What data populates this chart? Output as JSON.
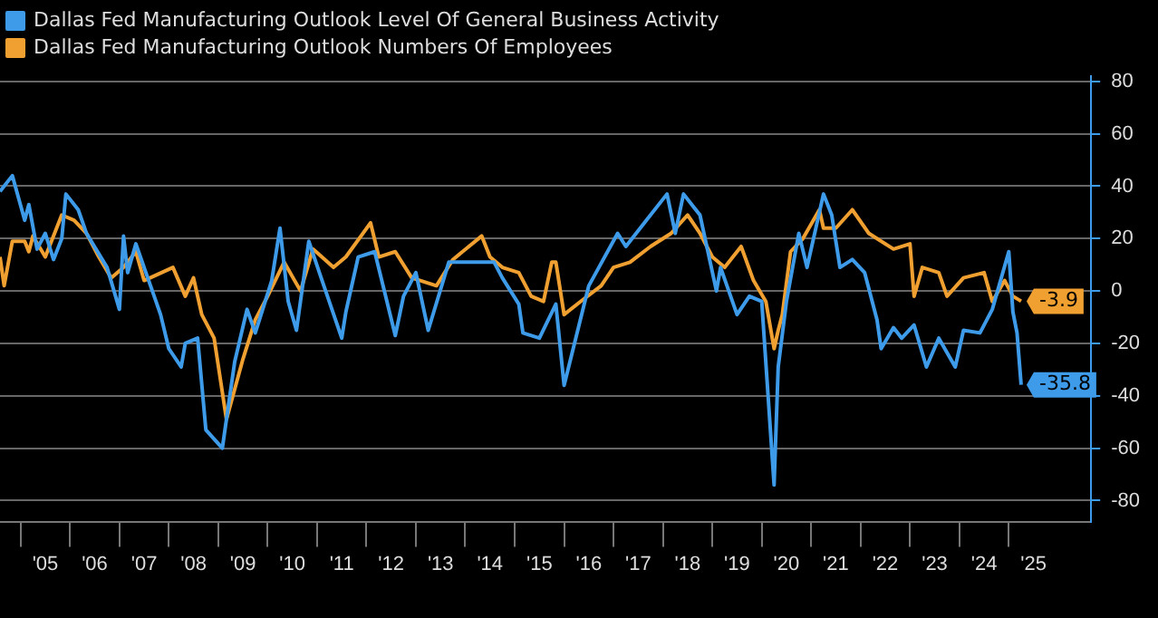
{
  "chart_data": {
    "type": "line",
    "series": [
      {
        "name": "Dallas Fed Manufacturing Outlook Level Of General Business Activity",
        "color": "#3d9be9",
        "x": [
          "2004-08",
          "2004-11",
          "2005-02",
          "2005-03",
          "2005-05",
          "2005-07",
          "2005-09",
          "2005-11",
          "2005-12",
          "2006-03",
          "2006-05",
          "2006-10",
          "2007-01",
          "2007-02",
          "2007-03",
          "2007-05",
          "2007-09",
          "2007-11",
          "2008-01",
          "2008-04",
          "2008-05",
          "2008-08",
          "2008-10",
          "2009-02",
          "2009-03",
          "2009-05",
          "2009-08",
          "2009-10",
          "2010-02",
          "2010-04",
          "2010-06",
          "2010-08",
          "2010-11",
          "2011-02",
          "2011-07",
          "2011-08",
          "2011-11",
          "2012-03",
          "2012-08",
          "2012-10",
          "2013-01",
          "2013-04",
          "2013-09",
          "2014-04",
          "2014-08",
          "2014-10",
          "2015-02",
          "2015-03",
          "2015-07",
          "2015-11",
          "2016-01",
          "2016-07",
          "2017-02",
          "2017-04",
          "2017-09",
          "2018-02",
          "2018-04",
          "2018-06",
          "2018-10",
          "2019-02",
          "2019-03",
          "2019-07",
          "2019-10",
          "2020-01",
          "2020-04",
          "2020-05",
          "2020-07",
          "2020-10",
          "2020-12",
          "2021-04",
          "2021-06",
          "2021-08",
          "2021-11",
          "2022-02",
          "2022-05",
          "2022-06",
          "2022-09",
          "2022-11",
          "2023-02",
          "2023-05",
          "2023-08",
          "2023-12",
          "2024-02",
          "2024-06",
          "2024-09",
          "2025-01",
          "2025-02",
          "2025-03",
          "2025-04"
        ],
        "values": [
          38,
          44,
          27,
          33,
          16,
          22,
          12,
          20,
          37,
          31,
          22,
          9,
          -7,
          21,
          7,
          18,
          0,
          -9,
          -22,
          -29,
          -20,
          -18,
          -53,
          -60,
          -49,
          -27,
          -7,
          -16,
          4,
          24,
          -4,
          -15,
          19,
          5,
          -18,
          -8,
          13,
          15,
          -17,
          -2,
          7,
          -15,
          11,
          11,
          11,
          5,
          -5,
          -16,
          -18,
          -5,
          -36,
          2,
          22,
          17,
          27,
          37,
          22,
          37,
          29,
          0,
          9,
          -9,
          -2,
          -4,
          -74,
          -29,
          -4,
          22,
          9,
          37,
          29,
          9,
          12,
          7,
          -11,
          -22,
          -14,
          -18,
          -13,
          -29,
          -18,
          -29,
          -15,
          -16,
          -7,
          15,
          -8,
          -16,
          -35.8
        ],
        "value_labels": [
          null,
          null,
          null,
          null,
          null,
          null,
          null,
          null,
          null,
          null,
          null,
          null,
          null,
          null,
          null,
          null,
          null,
          null,
          null,
          null,
          null,
          null,
          null,
          null,
          null,
          null,
          null,
          null,
          null,
          null,
          null,
          null,
          null,
          null,
          null,
          null,
          null,
          null,
          null,
          null,
          null,
          null,
          null,
          null,
          null,
          null,
          null,
          null,
          null,
          null,
          null,
          null,
          null,
          null,
          null,
          null,
          null,
          null,
          null,
          null,
          null,
          null,
          null,
          null,
          null,
          null,
          null,
          null,
          null,
          null,
          null,
          null,
          null,
          null,
          null,
          null,
          null,
          null,
          null,
          null,
          null,
          null,
          null,
          null,
          null,
          null,
          null,
          null,
          "-35.8"
        ]
      },
      {
        "name": "Dallas Fed Manufacturing Outlook Numbers Of Employees",
        "color": "#f0a030",
        "x": [
          "2004-08",
          "2004-09",
          "2004-11",
          "2005-02",
          "2005-03",
          "2005-04",
          "2005-07",
          "2005-11",
          "2006-02",
          "2006-05",
          "2006-08",
          "2006-11",
          "2007-02",
          "2007-05",
          "2007-07",
          "2008-02",
          "2008-05",
          "2008-07",
          "2008-09",
          "2008-12",
          "2009-03",
          "2009-07",
          "2009-10",
          "2010-01",
          "2010-05",
          "2010-09",
          "2010-12",
          "2011-05",
          "2011-08",
          "2012-02",
          "2012-04",
          "2012-08",
          "2012-12",
          "2013-06",
          "2013-10",
          "2014-05",
          "2014-07",
          "2014-10",
          "2015-02",
          "2015-05",
          "2015-08",
          "2015-10",
          "2015-11",
          "2016-01",
          "2016-05",
          "2016-10",
          "2017-01",
          "2017-05",
          "2017-10",
          "2018-03",
          "2018-07",
          "2018-10",
          "2019-01",
          "2019-04",
          "2019-08",
          "2019-11",
          "2020-02",
          "2020-04",
          "2020-05",
          "2020-06",
          "2020-08",
          "2020-11",
          "2021-03",
          "2021-04",
          "2021-07",
          "2021-11",
          "2022-03",
          "2022-09",
          "2023-01",
          "2023-02",
          "2023-04",
          "2023-08",
          "2023-10",
          "2024-02",
          "2024-07",
          "2024-09",
          "2024-12",
          "2025-02",
          "2025-04"
        ],
        "values": [
          13,
          2,
          19,
          19,
          15,
          21,
          13,
          29,
          27,
          22,
          13,
          5,
          9,
          15,
          4,
          9,
          -2,
          5,
          -9,
          -18,
          -49,
          -26,
          -11,
          -2,
          11,
          0,
          16,
          9,
          13,
          26,
          13,
          15,
          5,
          2,
          12,
          21,
          13,
          9,
          7,
          -2,
          -4,
          11,
          11,
          -9,
          -4,
          2,
          9,
          11,
          17,
          22,
          29,
          22,
          13,
          9,
          17,
          4,
          -4,
          -22,
          -15,
          -9,
          15,
          20,
          31,
          24,
          24,
          31,
          22,
          16,
          18,
          -2,
          9,
          7,
          -2,
          5,
          7,
          -4,
          4,
          -2,
          -3.9
        ],
        "value_labels": [
          null,
          null,
          null,
          null,
          null,
          null,
          null,
          null,
          null,
          null,
          null,
          null,
          null,
          null,
          null,
          null,
          null,
          null,
          null,
          null,
          null,
          null,
          null,
          null,
          null,
          null,
          null,
          null,
          null,
          null,
          null,
          null,
          null,
          null,
          null,
          null,
          null,
          null,
          null,
          null,
          null,
          null,
          null,
          null,
          null,
          null,
          null,
          null,
          null,
          null,
          null,
          null,
          null,
          null,
          null,
          null,
          null,
          null,
          null,
          null,
          null,
          null,
          null,
          null,
          null,
          null,
          null,
          null,
          null,
          null,
          null,
          null,
          null,
          null,
          null,
          null,
          null,
          null,
          "-3.9"
        ]
      }
    ],
    "xlim": [
      "2004-08",
      "2026-09"
    ],
    "xticks": [
      {
        "value": "2005-01",
        "label": null
      },
      {
        "value": "2005-07",
        "label": "'05"
      },
      {
        "value": "2006-01",
        "label": null
      },
      {
        "value": "2006-07",
        "label": "'06"
      },
      {
        "value": "2007-01",
        "label": null
      },
      {
        "value": "2007-07",
        "label": "'07"
      },
      {
        "value": "2008-01",
        "label": null
      },
      {
        "value": "2008-07",
        "label": "'08"
      },
      {
        "value": "2009-01",
        "label": null
      },
      {
        "value": "2009-07",
        "label": "'09"
      },
      {
        "value": "2010-01",
        "label": null
      },
      {
        "value": "2010-07",
        "label": "'10"
      },
      {
        "value": "2011-01",
        "label": null
      },
      {
        "value": "2011-07",
        "label": "'11"
      },
      {
        "value": "2012-01",
        "label": null
      },
      {
        "value": "2012-07",
        "label": "'12"
      },
      {
        "value": "2013-01",
        "label": null
      },
      {
        "value": "2013-07",
        "label": "'13"
      },
      {
        "value": "2014-01",
        "label": null
      },
      {
        "value": "2014-07",
        "label": "'14"
      },
      {
        "value": "2015-01",
        "label": null
      },
      {
        "value": "2015-07",
        "label": "'15"
      },
      {
        "value": "2016-01",
        "label": null
      },
      {
        "value": "2016-07",
        "label": "'16"
      },
      {
        "value": "2017-01",
        "label": null
      },
      {
        "value": "2017-07",
        "label": "'17"
      },
      {
        "value": "2018-01",
        "label": null
      },
      {
        "value": "2018-07",
        "label": "'18"
      },
      {
        "value": "2019-01",
        "label": null
      },
      {
        "value": "2019-07",
        "label": "'19"
      },
      {
        "value": "2020-01",
        "label": null
      },
      {
        "value": "2020-07",
        "label": "'20"
      },
      {
        "value": "2021-01",
        "label": null
      },
      {
        "value": "2021-07",
        "label": "'21"
      },
      {
        "value": "2022-01",
        "label": null
      },
      {
        "value": "2022-07",
        "label": "'22"
      },
      {
        "value": "2023-01",
        "label": null
      },
      {
        "value": "2023-07",
        "label": "'23"
      },
      {
        "value": "2024-01",
        "label": null
      },
      {
        "value": "2024-07",
        "label": "'24"
      },
      {
        "value": "2025-01",
        "label": null
      },
      {
        "value": "2025-07",
        "label": "'25"
      }
    ],
    "ylim": [
      -88,
      82
    ],
    "yticks": [
      -80,
      -60,
      -40,
      -20,
      0,
      20,
      40,
      60,
      80
    ],
    "grid": "y",
    "legend": "top left",
    "marker": "none",
    "line_style": "solid"
  }
}
